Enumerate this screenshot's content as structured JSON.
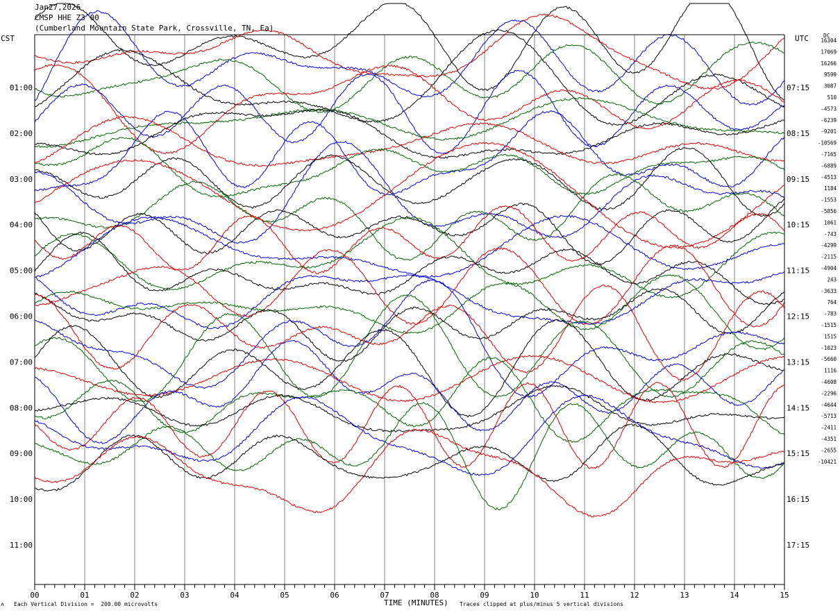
{
  "header": {
    "date": "Jan27,2026",
    "station": "CMSP HHE Z3 00",
    "location": "(Cumberland Mountain State Park, Crossville, TN, Ea)"
  },
  "left_axis_label": "CST",
  "right_axis_label": "UTC",
  "dc_label": "DC",
  "footer": {
    "scale_note": "Each Vertical Division =  200.00 microvolts",
    "clip_note": "Traces clipped at plus/minus 5 vertical divisions",
    "corner_mark": "ʌ"
  },
  "colors": {
    "black": "#000000",
    "red": "#e00000",
    "blue": "#0000e0",
    "green": "#006400",
    "grid": "#808080"
  },
  "chart_data": {
    "type": "line",
    "xlabel": "TIME (MINUTES)",
    "x_ticks": [
      "00",
      "01",
      "02",
      "03",
      "04",
      "05",
      "06",
      "07",
      "08",
      "09",
      "10",
      "11",
      "12",
      "13",
      "14",
      "15"
    ],
    "xlim": [
      0,
      15
    ],
    "y_ticks_cst": [
      "01:00",
      "02:00",
      "03:00",
      "04:00",
      "05:00",
      "06:00",
      "07:00",
      "08:00",
      "09:00",
      "10:00",
      "11:00"
    ],
    "y_ticks_utc": [
      "07:15",
      "08:15",
      "09:15",
      "10:15",
      "11:15",
      "12:15",
      "13:15",
      "14:15",
      "15:15",
      "16:15",
      "17:15"
    ],
    "trace_color_cycle": [
      "black",
      "red",
      "blue",
      "green"
    ],
    "dc_offsets": [
      "16304",
      "17069",
      "16266",
      "9599",
      "3087",
      "510",
      "-4573",
      "-6239",
      "-9201",
      "-10569",
      "-7165",
      "-6889",
      "-4513",
      "1184",
      "-1553",
      "-5856",
      "1061",
      "-743",
      "-4299",
      "-2115",
      "-4904",
      "243",
      "-3633",
      "764",
      "-783",
      "-1515",
      "1515",
      "-1023",
      "-5660",
      "1116",
      "-4608",
      "-2296",
      "-4644",
      "-5713",
      "-2411",
      "-4351",
      "-2655",
      "-10421"
    ],
    "traces_count": 38
  }
}
